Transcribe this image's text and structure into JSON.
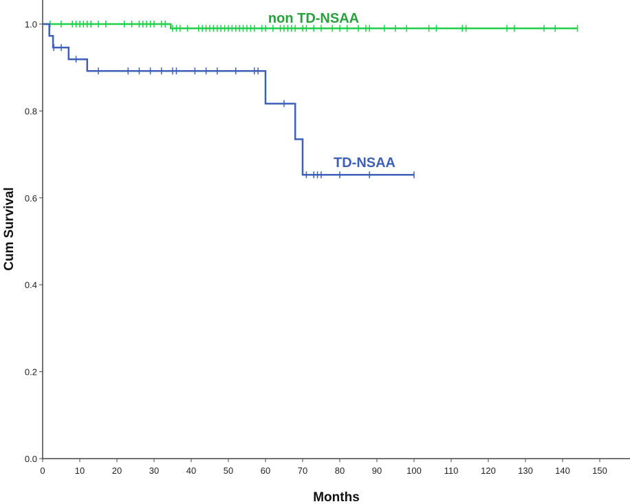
{
  "chart_data": {
    "type": "line",
    "subtype": "kaplan-meier",
    "title": "",
    "xlabel": "Months",
    "ylabel": "Cum Survival",
    "xlim": [
      0,
      150
    ],
    "ylim": [
      0.0,
      1.0
    ],
    "xticks": [
      0,
      10,
      20,
      30,
      40,
      50,
      60,
      70,
      80,
      90,
      100,
      110,
      120,
      130,
      140,
      150
    ],
    "yticks": [
      0.0,
      0.2,
      0.4,
      0.6,
      0.8,
      1.0
    ],
    "grid": false,
    "series": [
      {
        "name": "non TD-NSAA",
        "color": "#1fcf47",
        "label_color": "#27a13c",
        "steps": [
          [
            0,
            1.0
          ],
          [
            34.5,
            1.0
          ],
          [
            34.5,
            0.99
          ],
          [
            144,
            0.99
          ]
        ],
        "censored": [
          [
            2,
            1.0
          ],
          [
            5,
            1.0
          ],
          [
            8,
            1.0
          ],
          [
            9,
            1.0
          ],
          [
            10,
            1.0
          ],
          [
            11,
            1.0
          ],
          [
            12,
            1.0
          ],
          [
            13,
            1.0
          ],
          [
            15,
            1.0
          ],
          [
            17,
            1.0
          ],
          [
            22,
            1.0
          ],
          [
            24,
            1.0
          ],
          [
            26,
            1.0
          ],
          [
            27,
            1.0
          ],
          [
            28,
            1.0
          ],
          [
            29,
            1.0
          ],
          [
            30,
            1.0
          ],
          [
            32,
            1.0
          ],
          [
            33,
            1.0
          ],
          [
            35,
            0.99
          ],
          [
            36,
            0.99
          ],
          [
            37,
            0.99
          ],
          [
            39,
            0.99
          ],
          [
            42,
            0.99
          ],
          [
            43,
            0.99
          ],
          [
            44,
            0.99
          ],
          [
            45,
            0.99
          ],
          [
            46,
            0.99
          ],
          [
            47,
            0.99
          ],
          [
            48,
            0.99
          ],
          [
            49,
            0.99
          ],
          [
            50,
            0.99
          ],
          [
            51,
            0.99
          ],
          [
            52,
            0.99
          ],
          [
            53,
            0.99
          ],
          [
            54,
            0.99
          ],
          [
            55,
            0.99
          ],
          [
            56,
            0.99
          ],
          [
            57,
            0.99
          ],
          [
            59,
            0.99
          ],
          [
            60,
            0.99
          ],
          [
            62,
            0.99
          ],
          [
            64,
            0.99
          ],
          [
            65,
            0.99
          ],
          [
            66,
            0.99
          ],
          [
            67,
            0.99
          ],
          [
            68,
            0.99
          ],
          [
            70,
            0.99
          ],
          [
            71,
            0.99
          ],
          [
            73,
            0.99
          ],
          [
            75,
            0.99
          ],
          [
            78,
            0.99
          ],
          [
            80,
            0.99
          ],
          [
            82,
            0.99
          ],
          [
            85,
            0.99
          ],
          [
            87,
            0.99
          ],
          [
            88,
            0.99
          ],
          [
            92,
            0.99
          ],
          [
            95,
            0.99
          ],
          [
            98,
            0.99
          ],
          [
            104,
            0.99
          ],
          [
            106,
            0.99
          ],
          [
            113,
            0.99
          ],
          [
            114,
            0.99
          ],
          [
            125,
            0.99
          ],
          [
            127,
            0.99
          ],
          [
            135,
            0.99
          ],
          [
            138,
            0.99
          ],
          [
            144,
            0.99
          ]
        ]
      },
      {
        "name": "TD-NSAA",
        "color": "#3d5fb8",
        "label_color": "#3d5fb8",
        "steps": [
          [
            0,
            1.0
          ],
          [
            1.8,
            1.0
          ],
          [
            1.8,
            0.973
          ],
          [
            2.8,
            0.973
          ],
          [
            2.8,
            0.946
          ],
          [
            7,
            0.946
          ],
          [
            7,
            0.919
          ],
          [
            12,
            0.919
          ],
          [
            12,
            0.892
          ],
          [
            60,
            0.892
          ],
          [
            60,
            0.817
          ],
          [
            68,
            0.817
          ],
          [
            68,
            0.735
          ],
          [
            70,
            0.735
          ],
          [
            70,
            0.653
          ],
          [
            100,
            0.653
          ]
        ],
        "censored": [
          [
            3,
            0.946
          ],
          [
            5,
            0.946
          ],
          [
            9,
            0.919
          ],
          [
            15,
            0.892
          ],
          [
            23,
            0.892
          ],
          [
            26,
            0.892
          ],
          [
            29,
            0.892
          ],
          [
            32,
            0.892
          ],
          [
            35,
            0.892
          ],
          [
            36,
            0.892
          ],
          [
            41,
            0.892
          ],
          [
            44,
            0.892
          ],
          [
            47,
            0.892
          ],
          [
            52,
            0.892
          ],
          [
            57,
            0.892
          ],
          [
            58,
            0.892
          ],
          [
            65,
            0.817
          ],
          [
            71,
            0.653
          ],
          [
            73,
            0.653
          ],
          [
            74,
            0.653
          ],
          [
            75,
            0.653
          ],
          [
            80,
            0.653
          ],
          [
            88,
            0.653
          ],
          [
            100,
            0.653
          ]
        ]
      }
    ]
  }
}
